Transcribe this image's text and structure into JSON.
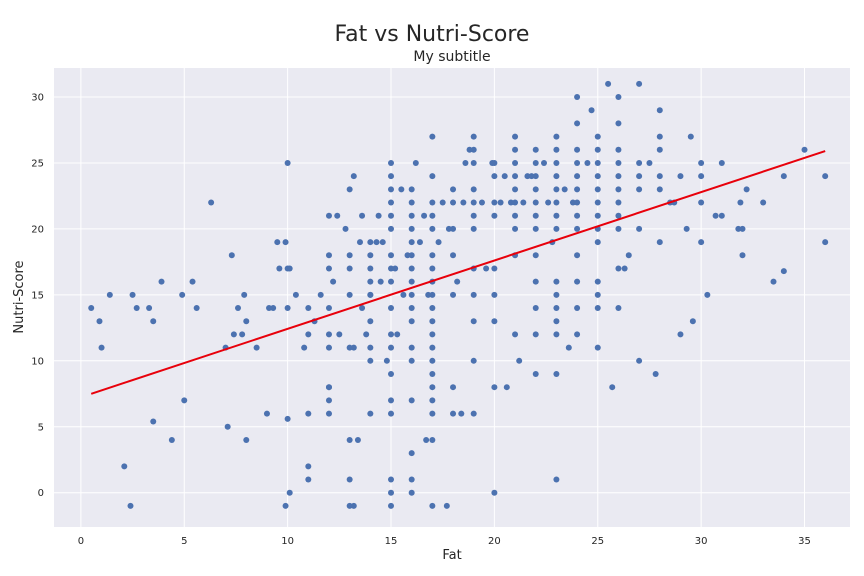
{
  "chart_data": {
    "type": "scatter",
    "title": "Fat vs Nutri-Score",
    "subtitle": "My subtitle",
    "xlabel": "Fat",
    "ylabel": "Nutri-Score",
    "xlim": [
      -1.3,
      37.2
    ],
    "ylim": [
      -2.6,
      32.2
    ],
    "xticks": [
      0,
      5,
      10,
      15,
      20,
      25,
      30,
      35
    ],
    "yticks": [
      0,
      5,
      10,
      15,
      20,
      25,
      30
    ],
    "grid": true,
    "legend": "none",
    "colors": {
      "background": "#eaeaf2",
      "grid": "#ffffff",
      "point": "#4c72b0",
      "trend": "#e8000b"
    },
    "trend_line": {
      "x": [
        0.5,
        36
      ],
      "y": [
        7.5,
        25.9
      ]
    },
    "points": [
      [
        0.5,
        14
      ],
      [
        0.9,
        13
      ],
      [
        1,
        11
      ],
      [
        1.4,
        15
      ],
      [
        2.1,
        2
      ],
      [
        2.4,
        -1
      ],
      [
        2.5,
        15
      ],
      [
        2.7,
        14
      ],
      [
        3.3,
        14
      ],
      [
        3.5,
        13
      ],
      [
        3.5,
        5.4
      ],
      [
        3.9,
        16
      ],
      [
        4.4,
        4
      ],
      [
        4.9,
        15
      ],
      [
        5,
        7
      ],
      [
        5.4,
        16
      ],
      [
        5.6,
        14
      ],
      [
        6.3,
        22
      ],
      [
        7,
        11
      ],
      [
        7.1,
        5
      ],
      [
        7.3,
        18
      ],
      [
        7.4,
        12
      ],
      [
        7.6,
        14
      ],
      [
        7.8,
        12
      ],
      [
        7.9,
        15
      ],
      [
        8,
        4
      ],
      [
        8,
        13
      ],
      [
        8.5,
        11
      ],
      [
        9,
        6
      ],
      [
        9.1,
        14
      ],
      [
        9.3,
        14
      ],
      [
        9.5,
        19
      ],
      [
        9.6,
        17
      ],
      [
        9.9,
        19
      ],
      [
        9.9,
        -1
      ],
      [
        10,
        17
      ],
      [
        10,
        25
      ],
      [
        10,
        5.6
      ],
      [
        10,
        14
      ],
      [
        10.1,
        17
      ],
      [
        10.1,
        0
      ],
      [
        10.4,
        15
      ],
      [
        10.8,
        11
      ],
      [
        11,
        12
      ],
      [
        11,
        14
      ],
      [
        11,
        6
      ],
      [
        11,
        2
      ],
      [
        11,
        1
      ],
      [
        11.3,
        13
      ],
      [
        11.6,
        15
      ],
      [
        12,
        21
      ],
      [
        12,
        18
      ],
      [
        12,
        17
      ],
      [
        12,
        14
      ],
      [
        12,
        12
      ],
      [
        12,
        11
      ],
      [
        12,
        8
      ],
      [
        12,
        8
      ],
      [
        12,
        7
      ],
      [
        12,
        6
      ],
      [
        12.2,
        16
      ],
      [
        12.4,
        21
      ],
      [
        12.5,
        12
      ],
      [
        12.8,
        20
      ],
      [
        13,
        23
      ],
      [
        13,
        18
      ],
      [
        13,
        17
      ],
      [
        13,
        15
      ],
      [
        13,
        11
      ],
      [
        13,
        4
      ],
      [
        13,
        1
      ],
      [
        13,
        -1
      ],
      [
        13.2,
        -1
      ],
      [
        13.2,
        24
      ],
      [
        13.2,
        11
      ],
      [
        13.4,
        4
      ],
      [
        13.5,
        19
      ],
      [
        13.6,
        21
      ],
      [
        13.6,
        14
      ],
      [
        13.8,
        12
      ],
      [
        14,
        19
      ],
      [
        14,
        18
      ],
      [
        14,
        17
      ],
      [
        14,
        16
      ],
      [
        14,
        15
      ],
      [
        14,
        15
      ],
      [
        14,
        13
      ],
      [
        14,
        11
      ],
      [
        14,
        10
      ],
      [
        14,
        6
      ],
      [
        14.3,
        19
      ],
      [
        14.4,
        21
      ],
      [
        14.5,
        16
      ],
      [
        14.6,
        19
      ],
      [
        14.8,
        10
      ],
      [
        15,
        25
      ],
      [
        15,
        24
      ],
      [
        15,
        23
      ],
      [
        15,
        22
      ],
      [
        15,
        21
      ],
      [
        15,
        20
      ],
      [
        15,
        18
      ],
      [
        15,
        17
      ],
      [
        15,
        16
      ],
      [
        15,
        14
      ],
      [
        15,
        12
      ],
      [
        15,
        11
      ],
      [
        15,
        9
      ],
      [
        15,
        7
      ],
      [
        15,
        6
      ],
      [
        15,
        1
      ],
      [
        15,
        0
      ],
      [
        15,
        -1
      ],
      [
        15.2,
        17
      ],
      [
        15.3,
        12
      ],
      [
        15.5,
        23
      ],
      [
        15.6,
        15
      ],
      [
        15.8,
        18
      ],
      [
        16,
        23
      ],
      [
        16,
        22
      ],
      [
        16,
        21
      ],
      [
        16,
        20
      ],
      [
        16,
        19
      ],
      [
        16,
        18
      ],
      [
        16,
        17
      ],
      [
        16,
        16
      ],
      [
        16,
        15
      ],
      [
        16,
        14
      ],
      [
        16,
        13
      ],
      [
        16,
        11
      ],
      [
        16,
        10
      ],
      [
        16,
        7
      ],
      [
        16,
        3
      ],
      [
        16,
        1
      ],
      [
        16,
        0
      ],
      [
        16.2,
        25
      ],
      [
        16.4,
        19
      ],
      [
        16.6,
        21
      ],
      [
        16.7,
        4
      ],
      [
        16.8,
        15
      ],
      [
        17,
        27
      ],
      [
        17,
        24
      ],
      [
        17,
        22
      ],
      [
        17,
        21
      ],
      [
        17,
        20
      ],
      [
        17,
        18
      ],
      [
        17,
        17
      ],
      [
        17,
        16
      ],
      [
        17,
        15
      ],
      [
        17,
        14
      ],
      [
        17,
        13
      ],
      [
        17,
        12
      ],
      [
        17,
        11
      ],
      [
        17,
        10
      ],
      [
        17,
        9
      ],
      [
        17,
        8
      ],
      [
        17,
        7
      ],
      [
        17,
        6
      ],
      [
        17,
        4
      ],
      [
        17,
        -1
      ],
      [
        17.3,
        19
      ],
      [
        17.5,
        22
      ],
      [
        17.7,
        -1
      ],
      [
        17.8,
        20
      ],
      [
        18,
        23
      ],
      [
        18,
        22
      ],
      [
        18,
        20
      ],
      [
        18,
        18
      ],
      [
        18,
        15
      ],
      [
        18,
        8
      ],
      [
        18,
        6
      ],
      [
        18.2,
        16
      ],
      [
        18.4,
        6
      ],
      [
        18.5,
        22
      ],
      [
        18.6,
        25
      ],
      [
        18.8,
        26
      ],
      [
        19,
        27
      ],
      [
        19,
        26
      ],
      [
        19,
        25
      ],
      [
        19,
        23
      ],
      [
        19,
        22
      ],
      [
        19,
        21
      ],
      [
        19,
        20
      ],
      [
        19,
        17
      ],
      [
        19,
        15
      ],
      [
        19,
        13
      ],
      [
        19,
        10
      ],
      [
        19,
        6
      ],
      [
        19.4,
        22
      ],
      [
        19.6,
        17
      ],
      [
        19.9,
        25
      ],
      [
        20,
        25
      ],
      [
        20,
        24
      ],
      [
        20,
        22
      ],
      [
        20,
        21
      ],
      [
        20,
        17
      ],
      [
        20,
        15
      ],
      [
        20,
        13
      ],
      [
        20,
        8
      ],
      [
        20,
        0
      ],
      [
        20.3,
        22
      ],
      [
        20.5,
        24
      ],
      [
        20.6,
        8
      ],
      [
        20.8,
        22
      ],
      [
        21,
        27
      ],
      [
        21,
        26
      ],
      [
        21,
        25
      ],
      [
        21,
        24
      ],
      [
        21,
        23
      ],
      [
        21,
        22
      ],
      [
        21,
        21
      ],
      [
        21,
        20
      ],
      [
        21,
        18
      ],
      [
        21,
        12
      ],
      [
        21.2,
        10
      ],
      [
        21.4,
        22
      ],
      [
        21.6,
        24
      ],
      [
        21.8,
        24
      ],
      [
        22,
        26
      ],
      [
        22,
        25
      ],
      [
        22,
        24
      ],
      [
        22,
        23
      ],
      [
        22,
        22
      ],
      [
        22,
        21
      ],
      [
        22,
        20
      ],
      [
        22,
        18
      ],
      [
        22,
        16
      ],
      [
        22,
        14
      ],
      [
        22,
        12
      ],
      [
        22,
        9
      ],
      [
        22.4,
        25
      ],
      [
        22.6,
        22
      ],
      [
        22.8,
        19
      ],
      [
        23,
        27
      ],
      [
        23,
        26
      ],
      [
        23,
        25
      ],
      [
        23,
        24
      ],
      [
        23,
        23
      ],
      [
        23,
        22
      ],
      [
        23,
        21
      ],
      [
        23,
        20
      ],
      [
        23,
        16
      ],
      [
        23,
        15
      ],
      [
        23,
        14
      ],
      [
        23,
        13
      ],
      [
        23,
        12
      ],
      [
        23,
        9
      ],
      [
        23,
        1
      ],
      [
        23.4,
        23
      ],
      [
        23.6,
        11
      ],
      [
        23.8,
        22
      ],
      [
        24,
        30
      ],
      [
        24,
        28
      ],
      [
        24,
        26
      ],
      [
        24,
        25
      ],
      [
        24,
        24
      ],
      [
        24,
        23
      ],
      [
        24,
        22
      ],
      [
        24,
        21
      ],
      [
        24,
        20
      ],
      [
        24,
        18
      ],
      [
        24,
        16
      ],
      [
        24,
        14
      ],
      [
        24,
        12
      ],
      [
        24.5,
        25
      ],
      [
        24.7,
        29
      ],
      [
        25,
        27
      ],
      [
        25,
        26
      ],
      [
        25,
        25
      ],
      [
        25,
        24
      ],
      [
        25,
        23
      ],
      [
        25,
        22
      ],
      [
        25,
        21
      ],
      [
        25,
        20
      ],
      [
        25,
        19
      ],
      [
        25,
        16
      ],
      [
        25,
        15
      ],
      [
        25,
        14
      ],
      [
        25,
        11
      ],
      [
        25.5,
        31
      ],
      [
        25.7,
        8
      ],
      [
        26,
        30
      ],
      [
        26,
        28
      ],
      [
        26,
        26
      ],
      [
        26,
        25
      ],
      [
        26,
        24
      ],
      [
        26,
        23
      ],
      [
        26,
        22
      ],
      [
        26,
        21
      ],
      [
        26,
        20
      ],
      [
        26,
        17
      ],
      [
        26,
        14
      ],
      [
        26.3,
        17
      ],
      [
        26.5,
        18
      ],
      [
        27,
        31
      ],
      [
        27,
        25
      ],
      [
        27,
        24
      ],
      [
        27,
        23
      ],
      [
        27,
        20
      ],
      [
        27,
        10
      ],
      [
        27.5,
        25
      ],
      [
        27.8,
        9
      ],
      [
        28,
        29
      ],
      [
        28,
        27
      ],
      [
        28,
        26
      ],
      [
        28,
        24
      ],
      [
        28,
        23
      ],
      [
        28,
        19
      ],
      [
        28.5,
        22
      ],
      [
        28.7,
        22
      ],
      [
        29,
        24
      ],
      [
        29,
        12
      ],
      [
        29.3,
        20
      ],
      [
        29.5,
        27
      ],
      [
        29.6,
        13
      ],
      [
        30,
        25
      ],
      [
        30,
        24
      ],
      [
        30,
        22
      ],
      [
        30,
        19
      ],
      [
        30.3,
        15
      ],
      [
        30.7,
        21
      ],
      [
        31,
        21
      ],
      [
        31,
        25
      ],
      [
        31.8,
        20
      ],
      [
        31.9,
        22
      ],
      [
        32,
        20
      ],
      [
        32,
        18
      ],
      [
        32.2,
        23
      ],
      [
        33,
        22
      ],
      [
        33.5,
        16
      ],
      [
        34,
        16.8
      ],
      [
        34,
        24
      ],
      [
        35,
        26
      ],
      [
        36,
        24
      ],
      [
        36,
        19
      ]
    ]
  }
}
